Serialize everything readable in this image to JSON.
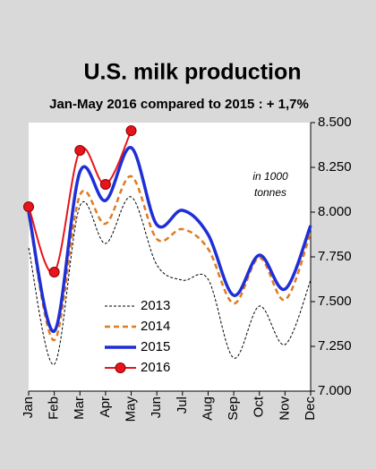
{
  "chart_data": {
    "type": "line",
    "title": "U.S. milk production",
    "subtitle": "Jan-May 2016 compared to 2015 : + 1,7%",
    "annotation": [
      "in 1000",
      "tonnes"
    ],
    "categories": [
      "Jan",
      "Feb",
      "Mar",
      "Apr",
      "May",
      "Jun",
      "Jul",
      "Aug",
      "Sep",
      "Oct",
      "Nov",
      "Dec"
    ],
    "series": [
      {
        "name": "2013",
        "color": "#000000",
        "values": [
          7800,
          7150,
          8035,
          7825,
          8085,
          7705,
          7620,
          7625,
          7185,
          7475,
          7260,
          7620
        ]
      },
      {
        "name": "2014",
        "color": "#e07b20",
        "values": [
          7985,
          7285,
          8095,
          7935,
          8200,
          7850,
          7905,
          7795,
          7490,
          7745,
          7510,
          7885
        ]
      },
      {
        "name": "2015",
        "color": "#1f2fd6",
        "values": [
          8000,
          7335,
          8225,
          8065,
          8360,
          7930,
          8010,
          7875,
          7535,
          7760,
          7570,
          7925
        ]
      },
      {
        "name": "2016",
        "color": "#e8141c",
        "values": [
          8030,
          7665,
          8345,
          8155,
          8455,
          null,
          null,
          null,
          null,
          null,
          null,
          null
        ]
      }
    ],
    "ylim": [
      7000,
      8500
    ],
    "yticks": [
      {
        "value": 7000,
        "label": "7.000"
      },
      {
        "value": 7250,
        "label": "7.250"
      },
      {
        "value": 7500,
        "label": "7.500"
      },
      {
        "value": 7750,
        "label": "7.750"
      },
      {
        "value": 8000,
        "label": "8.000"
      },
      {
        "value": 8250,
        "label": "8.250"
      },
      {
        "value": 8500,
        "label": "8.500"
      }
    ]
  }
}
